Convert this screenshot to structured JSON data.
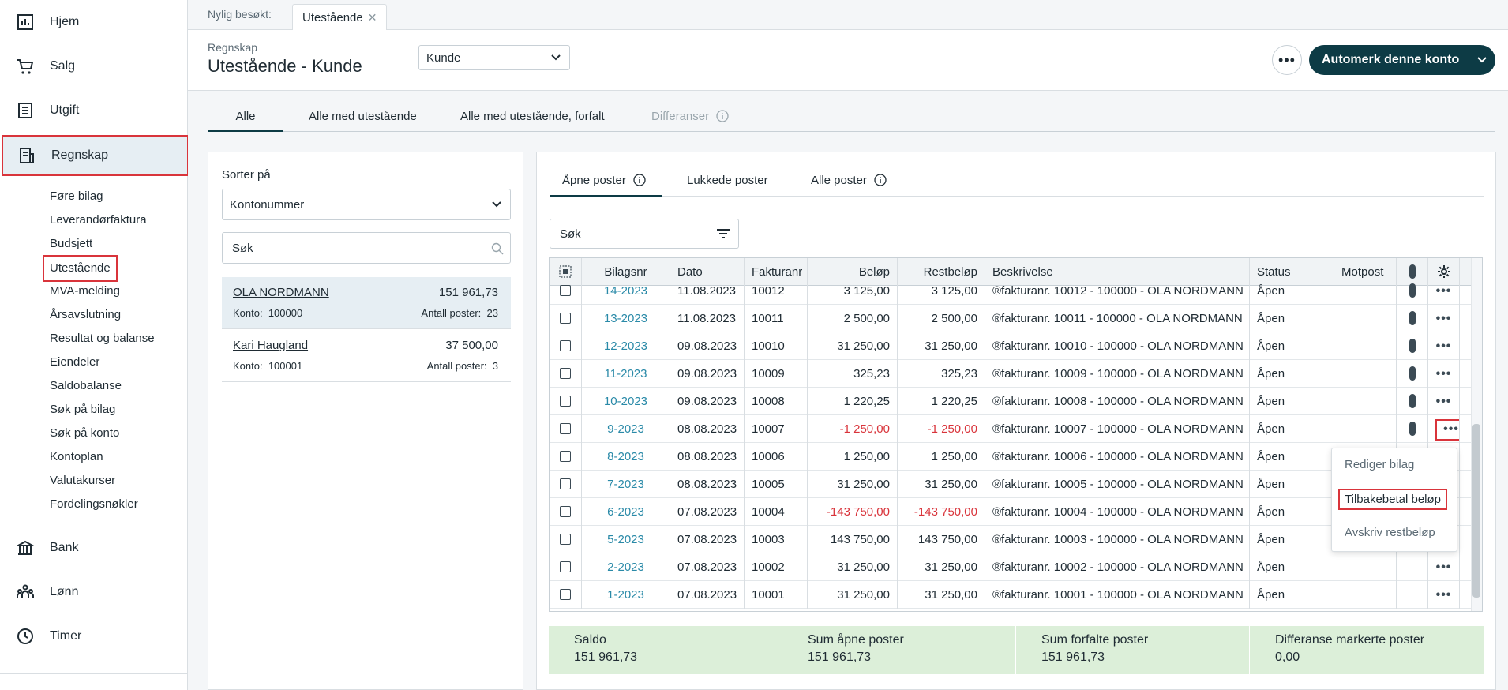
{
  "sidebar": {
    "main_items": [
      {
        "label": "Hjem",
        "icon": "chart-icon"
      },
      {
        "label": "Salg",
        "icon": "cart-icon"
      },
      {
        "label": "Utgift",
        "icon": "list-icon"
      },
      {
        "label": "Regnskap",
        "icon": "ledger-icon"
      },
      {
        "label": "Bank",
        "icon": "bank-icon"
      },
      {
        "label": "Lønn",
        "icon": "people-icon"
      },
      {
        "label": "Timer",
        "icon": "clock-icon"
      }
    ],
    "sub_items": [
      "Føre bilag",
      "Leverandørfaktura",
      "Budsjett",
      "Utestående",
      "MVA-melding",
      "Årsavslutning",
      "Resultat og balanse",
      "Eiendeler",
      "Saldobalanse",
      "Søk på bilag",
      "Søk på konto",
      "Kontoplan",
      "Valutakurser",
      "Fordelingsnøkler"
    ]
  },
  "recent": {
    "label": "Nylig besøkt:",
    "tab": "Utestående"
  },
  "header": {
    "breadcrumb": "Regnskap",
    "title": "Utestående - Kunde",
    "type_select": "Kunde",
    "primary_button": "Automerk denne konto"
  },
  "main_tabs": [
    "Alle",
    "Alle med utestående",
    "Alle med utestående, forfalt",
    "Differanser"
  ],
  "left_panel": {
    "sort_label": "Sorter på",
    "sort_value": "Kontonummer",
    "search_placeholder": "Søk",
    "accounts": [
      {
        "name": "OLA NORDMANN",
        "amount": "151 961,73",
        "konto_label": "Konto:",
        "konto": "100000",
        "antall_label": "Antall poster:",
        "antall": "23"
      },
      {
        "name": "Kari Haugland",
        "amount": "37 500,00",
        "konto_label": "Konto:",
        "konto": "100001",
        "antall_label": "Antall poster:",
        "antall": "3"
      }
    ]
  },
  "right_panel": {
    "tabs": [
      "Åpne poster",
      "Lukkede poster",
      "Alle poster"
    ],
    "search_placeholder": "Søk"
  },
  "table": {
    "columns": [
      "Bilagsnr",
      "Dato",
      "Fakturanr",
      "Beløp",
      "Restbeløp",
      "Beskrivelse",
      "Status",
      "Motpost"
    ],
    "rows": [
      {
        "bilag": "14-2023",
        "dato": "11.08.2023",
        "faktura": "10012",
        "belop": "3 125,00",
        "rest": "3 125,00",
        "beskrivelse": "®fakturanr. 10012 - 100000 - OLA NORDMANN",
        "status": "Åpen",
        "neg": false
      },
      {
        "bilag": "13-2023",
        "dato": "11.08.2023",
        "faktura": "10011",
        "belop": "2 500,00",
        "rest": "2 500,00",
        "beskrivelse": "®fakturanr. 10011 - 100000 - OLA NORDMANN",
        "status": "Åpen",
        "neg": false
      },
      {
        "bilag": "12-2023",
        "dato": "09.08.2023",
        "faktura": "10010",
        "belop": "31 250,00",
        "rest": "31 250,00",
        "beskrivelse": "®fakturanr. 10010 - 100000 - OLA NORDMANN",
        "status": "Åpen",
        "neg": false
      },
      {
        "bilag": "11-2023",
        "dato": "09.08.2023",
        "faktura": "10009",
        "belop": "325,23",
        "rest": "325,23",
        "beskrivelse": "®fakturanr. 10009 - 100000 - OLA NORDMANN",
        "status": "Åpen",
        "neg": false
      },
      {
        "bilag": "10-2023",
        "dato": "09.08.2023",
        "faktura": "10008",
        "belop": "1 220,25",
        "rest": "1 220,25",
        "beskrivelse": "®fakturanr. 10008 - 100000 - OLA NORDMANN",
        "status": "Åpen",
        "neg": false
      },
      {
        "bilag": "9-2023",
        "dato": "08.08.2023",
        "faktura": "10007",
        "belop": "-1 250,00",
        "rest": "-1 250,00",
        "beskrivelse": "®fakturanr. 10007 - 100000 - OLA NORDMANN",
        "status": "Åpen",
        "neg": true
      },
      {
        "bilag": "8-2023",
        "dato": "08.08.2023",
        "faktura": "10006",
        "belop": "1 250,00",
        "rest": "1 250,00",
        "beskrivelse": "®fakturanr. 10006 - 100000 - OLA NORDMANN",
        "status": "Åpen",
        "neg": false
      },
      {
        "bilag": "7-2023",
        "dato": "08.08.2023",
        "faktura": "10005",
        "belop": "31 250,00",
        "rest": "31 250,00",
        "beskrivelse": "®fakturanr. 10005 - 100000 - OLA NORDMANN",
        "status": "Åpen",
        "neg": false
      },
      {
        "bilag": "6-2023",
        "dato": "07.08.2023",
        "faktura": "10004",
        "belop": "-143 750,00",
        "rest": "-143 750,00",
        "beskrivelse": "®fakturanr. 10004 - 100000 - OLA NORDMANN",
        "status": "Åpen",
        "neg": true
      },
      {
        "bilag": "5-2023",
        "dato": "07.08.2023",
        "faktura": "10003",
        "belop": "143 750,00",
        "rest": "143 750,00",
        "beskrivelse": "®fakturanr. 10003 - 100000 - OLA NORDMANN",
        "status": "Åpen",
        "neg": false
      },
      {
        "bilag": "2-2023",
        "dato": "07.08.2023",
        "faktura": "10002",
        "belop": "31 250,00",
        "rest": "31 250,00",
        "beskrivelse": "®fakturanr. 10002 - 100000 - OLA NORDMANN",
        "status": "Åpen",
        "neg": false
      },
      {
        "bilag": "1-2023",
        "dato": "07.08.2023",
        "faktura": "10001",
        "belop": "31 250,00",
        "rest": "31 250,00",
        "beskrivelse": "®fakturanr. 10001 - 100000 - OLA NORDMANN",
        "status": "Åpen",
        "neg": false
      }
    ]
  },
  "context_menu": [
    "Rediger bilag",
    "Tilbakebetal beløp",
    "Avskriv restbeløp"
  ],
  "summary": [
    {
      "label": "Saldo",
      "value": "151 961,73"
    },
    {
      "label": "Sum åpne poster",
      "value": "151 961,73"
    },
    {
      "label": "Sum forfalte poster",
      "value": "151 961,73"
    },
    {
      "label": "Differanse markerte poster",
      "value": "0,00"
    }
  ],
  "colors": {
    "primary": "#0d3b45",
    "link": "#2a8aa8",
    "negative": "#d9343b",
    "highlight": "#d9343b",
    "summary_bg": "#dcefd9"
  }
}
